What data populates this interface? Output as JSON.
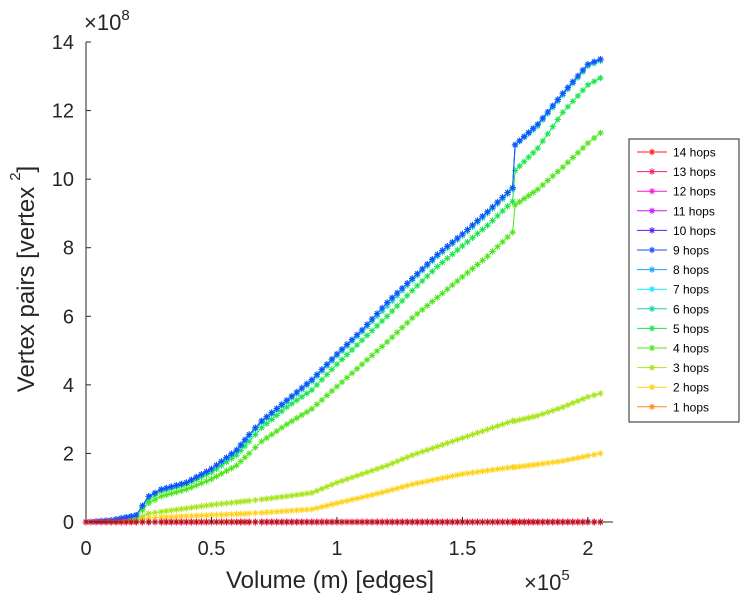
{
  "chart_data": {
    "type": "line",
    "title": "",
    "xlabel": "Volume (m) [edges]",
    "ylabel": "Vertex pairs [vertex",
    "ylabel_sup": "2",
    "ylabel_close": "]",
    "x_multiplier": {
      "base": "×10",
      "power": "5"
    },
    "y_multiplier": {
      "base": "×10",
      "power": "8"
    },
    "xlim": [
      0,
      2.1
    ],
    "ylim": [
      0,
      14
    ],
    "xticks": [
      0,
      0.5,
      1,
      1.5,
      2
    ],
    "xtick_labels": [
      "0",
      "0.5",
      "1",
      "1.5",
      "2"
    ],
    "yticks": [
      0,
      2,
      4,
      6,
      8,
      10,
      12,
      14
    ],
    "ytick_labels": [
      "0",
      "2",
      "4",
      "6",
      "8",
      "10",
      "12",
      "14"
    ],
    "grid": false,
    "legend_position": "right",
    "marker": "*",
    "x": [
      0,
      0.1,
      0.2,
      0.25,
      0.3,
      0.4,
      0.5,
      0.6,
      0.65,
      0.7,
      0.8,
      0.9,
      1.0,
      1.1,
      1.2,
      1.3,
      1.4,
      1.5,
      1.6,
      1.7,
      1.71,
      1.8,
      1.9,
      2.0,
      2.05
    ],
    "series": [
      {
        "name": "14 hops",
        "color": "#ff1a1a",
        "values": [
          0,
          0,
          0,
          0,
          0,
          0,
          0,
          0,
          0,
          0,
          0,
          0,
          0,
          0,
          0,
          0,
          0,
          0,
          0,
          0,
          0,
          0,
          0,
          0,
          0
        ]
      },
      {
        "name": "13 hops",
        "color": "#ff1a75",
        "values": [
          0,
          0,
          0,
          0,
          0,
          0,
          0,
          0,
          0,
          0,
          0,
          0,
          0,
          0,
          0,
          0,
          0,
          0,
          0,
          0,
          0,
          0,
          0,
          0,
          0
        ]
      },
      {
        "name": "12 hops",
        "color": "#ff1ad1",
        "values": [
          0,
          0,
          0,
          0,
          0,
          0,
          0,
          0,
          0,
          0,
          0,
          0,
          0,
          0,
          0,
          0,
          0,
          0,
          0,
          0,
          0,
          0,
          0,
          0,
          0
        ]
      },
      {
        "name": "11 hops",
        "color": "#c61aff",
        "values": [
          0,
          0,
          0,
          0,
          0,
          0,
          0,
          0,
          0,
          0,
          0,
          0,
          0,
          0,
          0,
          0,
          0,
          0,
          0,
          0,
          0,
          0,
          0,
          0,
          0
        ]
      },
      {
        "name": "10 hops",
        "color": "#601aff",
        "values": [
          0,
          0,
          0,
          0,
          0,
          0,
          0,
          0,
          0,
          0,
          0,
          0,
          0,
          0,
          0,
          0,
          0,
          0,
          0,
          0,
          0,
          0,
          0,
          0,
          0
        ]
      },
      {
        "name": "9 hops",
        "color": "#1a4cff",
        "values": [
          0,
          0.05,
          0.2,
          0.75,
          0.95,
          1.15,
          1.55,
          2.1,
          2.55,
          2.95,
          3.55,
          4.15,
          4.9,
          5.6,
          6.4,
          7.1,
          7.8,
          8.4,
          9.05,
          9.75,
          11.0,
          11.6,
          12.5,
          13.35,
          13.5
        ]
      },
      {
        "name": "8 hops",
        "color": "#1aa6ff",
        "values": [
          0,
          0.05,
          0.2,
          0.75,
          0.95,
          1.15,
          1.55,
          2.1,
          2.55,
          2.95,
          3.55,
          4.15,
          4.9,
          5.6,
          6.4,
          7.1,
          7.8,
          8.4,
          9.05,
          9.75,
          11.0,
          11.6,
          12.5,
          13.35,
          13.5
        ]
      },
      {
        "name": "7 hops",
        "color": "#1ae6ff",
        "values": [
          0,
          0.05,
          0.2,
          0.75,
          0.95,
          1.15,
          1.55,
          2.1,
          2.55,
          2.95,
          3.55,
          4.15,
          4.9,
          5.6,
          6.4,
          7.1,
          7.8,
          8.4,
          9.05,
          9.75,
          11.0,
          11.6,
          12.5,
          13.35,
          13.5
        ]
      },
      {
        "name": "6 hops",
        "color": "#1ad1b2",
        "values": [
          0,
          0.05,
          0.2,
          0.75,
          0.95,
          1.15,
          1.55,
          2.05,
          2.5,
          2.9,
          3.5,
          4.1,
          4.85,
          5.55,
          6.3,
          7.05,
          7.75,
          8.35,
          9.0,
          9.7,
          11.0,
          11.55,
          12.45,
          13.3,
          13.45
        ]
      },
      {
        "name": "5 hops",
        "color": "#1ae64d",
        "values": [
          0,
          0.05,
          0.2,
          0.65,
          0.9,
          1.1,
          1.45,
          1.95,
          2.35,
          2.75,
          3.35,
          3.85,
          4.6,
          5.3,
          6.0,
          6.75,
          7.45,
          8.05,
          8.65,
          9.35,
          10.25,
          10.9,
          11.95,
          12.75,
          12.95
        ]
      },
      {
        "name": "4 hops",
        "color": "#4de61a",
        "values": [
          0,
          0.03,
          0.15,
          0.55,
          0.75,
          0.95,
          1.25,
          1.65,
          2.0,
          2.35,
          2.85,
          3.3,
          3.95,
          4.6,
          5.25,
          5.95,
          6.55,
          7.15,
          7.75,
          8.45,
          9.25,
          9.7,
          10.35,
          11.05,
          11.35
        ]
      },
      {
        "name": "3 hops",
        "color": "#a6e61a",
        "values": [
          0,
          0.02,
          0.08,
          0.25,
          0.3,
          0.4,
          0.5,
          0.58,
          0.62,
          0.66,
          0.75,
          0.85,
          1.15,
          1.4,
          1.65,
          1.95,
          2.2,
          2.45,
          2.7,
          2.95,
          2.95,
          3.1,
          3.35,
          3.65,
          3.75
        ]
      },
      {
        "name": "2 hops",
        "color": "#ffd21a",
        "values": [
          0,
          0.01,
          0.04,
          0.12,
          0.14,
          0.17,
          0.2,
          0.23,
          0.25,
          0.27,
          0.32,
          0.37,
          0.55,
          0.72,
          0.9,
          1.1,
          1.25,
          1.4,
          1.5,
          1.6,
          1.6,
          1.68,
          1.78,
          1.93,
          2.0
        ]
      },
      {
        "name": "1 hops",
        "color": "#ff8c1a",
        "values": [
          0,
          0,
          0,
          0,
          0,
          0,
          0,
          0,
          0,
          0,
          0,
          0,
          0,
          0,
          0,
          0,
          0,
          0,
          0,
          0,
          0,
          0,
          0,
          0,
          0
        ]
      }
    ]
  }
}
